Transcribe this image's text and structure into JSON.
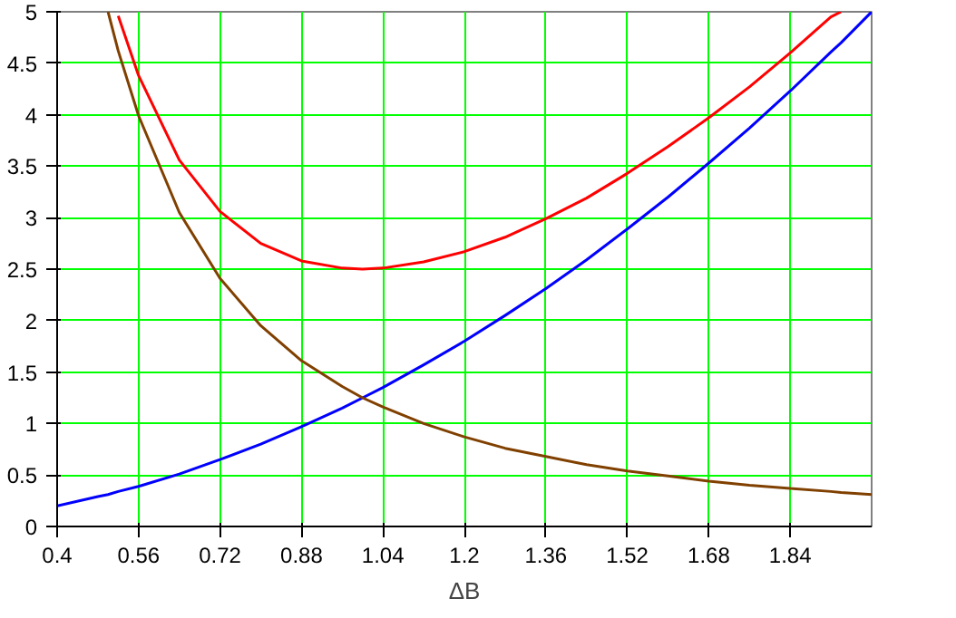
{
  "chart_data": {
    "type": "line",
    "xlabel": "ΔB",
    "xlim": [
      0.4,
      2.0
    ],
    "ylim": [
      0,
      5
    ],
    "xticks": [
      0.4,
      0.56,
      0.72,
      0.88,
      1.04,
      1.2,
      1.36,
      1.52,
      1.68,
      1.84
    ],
    "yticks": [
      0,
      0.5,
      1,
      1.5,
      2,
      2.5,
      3,
      3.5,
      4,
      4.5,
      5
    ],
    "grid": true,
    "series": [
      {
        "color": "#0000ff",
        "x": [
          0.4,
          0.48,
          0.5,
          0.52,
          0.56,
          0.64,
          0.72,
          0.8,
          0.88,
          0.96,
          1.0,
          1.04,
          1.12,
          1.2,
          1.28,
          1.36,
          1.44,
          1.52,
          1.6,
          1.68,
          1.76,
          1.84,
          1.92,
          1.94,
          2.0
        ],
        "values": [
          0.2,
          0.29,
          0.31,
          0.34,
          0.39,
          0.51,
          0.65,
          0.8,
          0.97,
          1.15,
          1.25,
          1.35,
          1.57,
          1.8,
          2.05,
          2.31,
          2.59,
          2.89,
          3.2,
          3.53,
          3.87,
          4.23,
          4.61,
          4.7,
          5.0
        ]
      },
      {
        "color": "#804000",
        "x": [
          0.5,
          0.52,
          0.56,
          0.64,
          0.72,
          0.8,
          0.88,
          0.96,
          1.0,
          1.04,
          1.12,
          1.2,
          1.28,
          1.36,
          1.44,
          1.52,
          1.6,
          1.68,
          1.76,
          1.84,
          1.92,
          1.94,
          2.0
        ],
        "values": [
          5.0,
          4.62,
          3.99,
          3.05,
          2.41,
          1.95,
          1.61,
          1.36,
          1.25,
          1.16,
          1.0,
          0.87,
          0.76,
          0.68,
          0.6,
          0.54,
          0.49,
          0.44,
          0.4,
          0.37,
          0.34,
          0.33,
          0.31
        ]
      },
      {
        "color": "#ff0000",
        "x": [
          0.52,
          0.56,
          0.64,
          0.72,
          0.8,
          0.88,
          0.96,
          1.0,
          1.04,
          1.12,
          1.2,
          1.28,
          1.36,
          1.44,
          1.52,
          1.6,
          1.68,
          1.76,
          1.84,
          1.92,
          1.94
        ],
        "values": [
          4.96,
          4.38,
          3.56,
          3.06,
          2.75,
          2.58,
          2.51,
          2.5,
          2.51,
          2.57,
          2.67,
          2.81,
          2.99,
          3.19,
          3.43,
          3.69,
          3.97,
          4.27,
          4.6,
          4.95,
          5.0
        ]
      }
    ]
  }
}
